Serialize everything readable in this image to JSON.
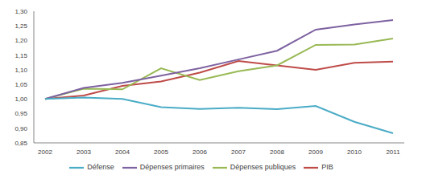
{
  "chart_data": {
    "type": "line",
    "categories": [
      "2002",
      "2003",
      "2004",
      "2005",
      "2006",
      "2007",
      "2008",
      "2009",
      "2010",
      "2011"
    ],
    "series": [
      {
        "name": "PIB",
        "color": "#be4b48",
        "values": [
          1.0,
          1.012,
          1.045,
          1.06,
          1.09,
          1.13,
          1.115,
          1.1,
          1.124,
          1.128
        ]
      },
      {
        "name": "Dépenses publiques",
        "color": "#98b954",
        "values": [
          1.0,
          1.035,
          1.033,
          1.105,
          1.065,
          1.095,
          1.115,
          1.185,
          1.186,
          1.207
        ]
      },
      {
        "name": "Dépenses primaires",
        "color": "#7e62a1",
        "values": [
          1.0,
          1.038,
          1.055,
          1.08,
          1.105,
          1.135,
          1.165,
          1.237,
          1.255,
          1.27
        ]
      },
      {
        "name": "Défense",
        "color": "#4aacc6",
        "values": [
          1.0,
          1.005,
          1.0,
          0.972,
          0.966,
          0.97,
          0.965,
          0.976,
          0.922,
          0.883
        ]
      }
    ],
    "ylim": [
      0.85,
      1.3
    ],
    "yticks": [
      {
        "value": 0.85,
        "label": "0,85"
      },
      {
        "value": 0.9,
        "label": "0,90"
      },
      {
        "value": 0.95,
        "label": "0,95"
      },
      {
        "value": 1.0,
        "label": "1,00"
      },
      {
        "value": 1.05,
        "label": "1,05"
      },
      {
        "value": 1.1,
        "label": "1,10"
      },
      {
        "value": 1.15,
        "label": "1,15"
      },
      {
        "value": 1.2,
        "label": "1,20"
      },
      {
        "value": 1.25,
        "label": "1,25"
      },
      {
        "value": 1.3,
        "label": "1,30"
      }
    ],
    "grid": false,
    "legend": "bottom"
  }
}
